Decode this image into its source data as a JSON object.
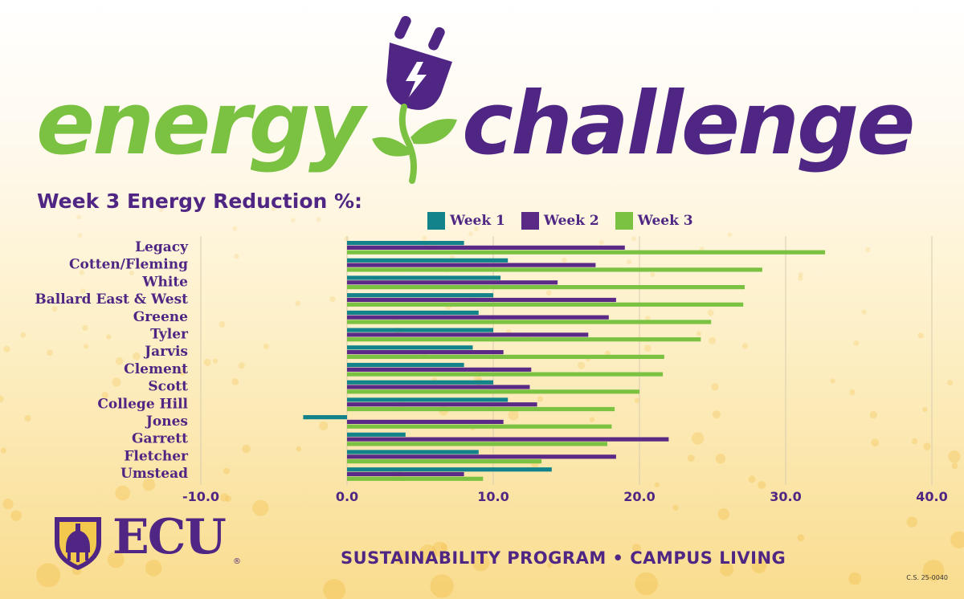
{
  "logo": {
    "word_left": "energy",
    "word_right": "challenge",
    "color_left": "#7cc242",
    "color_right": "#4f2683"
  },
  "subtitle": "Week 3 Energy Reduction %:",
  "chart_data": {
    "type": "bar",
    "orientation": "horizontal",
    "categories": [
      "Legacy",
      "Cotten/Fleming",
      "White",
      "Ballard East & West",
      "Greene",
      "Tyler",
      "Jarvis",
      "Clement",
      "Scott",
      "College Hill",
      "Jones",
      "Garrett",
      "Fletcher",
      "Umstead"
    ],
    "series": [
      {
        "name": "Week 1",
        "color": "#12838a",
        "values": [
          8.0,
          11.0,
          10.5,
          10.0,
          9.0,
          10.0,
          8.6,
          8.0,
          10.0,
          11.0,
          -3.0,
          4.0,
          9.0,
          14.0
        ]
      },
      {
        "name": "Week 2",
        "color": "#5b2a86",
        "values": [
          19.0,
          17.0,
          14.4,
          18.4,
          17.9,
          16.5,
          10.7,
          12.6,
          12.5,
          13.0,
          10.7,
          22.0,
          18.4,
          8.0
        ]
      },
      {
        "name": "Week 3",
        "color": "#7cc242",
        "values": [
          32.7,
          28.4,
          27.2,
          27.1,
          24.9,
          24.2,
          21.7,
          21.6,
          20.0,
          18.3,
          18.1,
          17.8,
          13.3,
          9.3
        ]
      }
    ],
    "xticks": [
      "-10.0",
      "0.0",
      "10.0",
      "20.0",
      "30.0",
      "40.0"
    ],
    "xlim": [
      -10,
      40
    ],
    "grid": true,
    "legend": "top"
  },
  "legend": {
    "items": [
      {
        "label": "Week 1",
        "color": "#12838a"
      },
      {
        "label": "Week 2",
        "color": "#5b2a86"
      },
      {
        "label": "Week 3",
        "color": "#7cc242"
      }
    ]
  },
  "footer": {
    "brand": "ECU",
    "registered": "®",
    "program": "SUSTAINABILITY PROGRAM • CAMPUS LIVING",
    "code": "C.S. 25-0040"
  }
}
